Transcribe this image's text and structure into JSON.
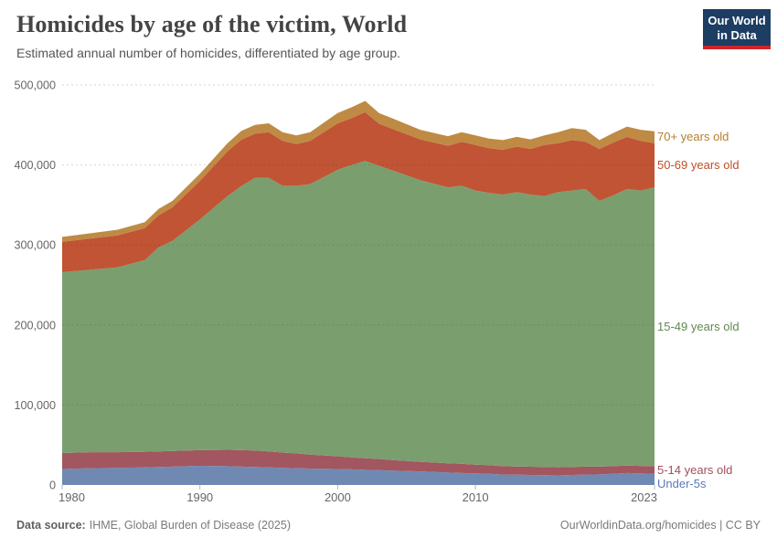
{
  "header": {
    "title": "Homicides by age of the victim, World",
    "subtitle": "Estimated annual number of homicides, differentiated by age group."
  },
  "logo": {
    "line1": "Our World",
    "line2": "in Data",
    "bg_color": "#1d3d63",
    "accent_color": "#cc2428"
  },
  "footer": {
    "source_label": "Data source:",
    "source_text": "IHME, Global Burden of Disease (2025)",
    "right_text": "OurWorldinData.org/homicides | CC BY"
  },
  "chart_data": {
    "type": "area",
    "stacked": true,
    "title": "Homicides by age of the victim, World",
    "xlabel": "",
    "ylabel": "Estimated annual number of homicides",
    "xlim": [
      1980,
      2023
    ],
    "ylim": [
      0,
      500000
    ],
    "grid": "horizontal-dashed",
    "legend_position": "right-edge-labels",
    "x": [
      1980,
      1982,
      1984,
      1986,
      1987,
      1988,
      1990,
      1992,
      1993,
      1994,
      1995,
      1996,
      1997,
      1998,
      2000,
      2001,
      2002,
      2003,
      2004,
      2006,
      2008,
      2009,
      2010,
      2011,
      2012,
      2013,
      2014,
      2015,
      2016,
      2017,
      2018,
      2019,
      2020,
      2021,
      2022,
      2023
    ],
    "series": [
      {
        "name": "Under-5s",
        "color": "#7089b3",
        "label_color": "#5b7ab8",
        "values": [
          20000,
          21000,
          21500,
          22000,
          22500,
          23000,
          24000,
          23500,
          23000,
          22500,
          22000,
          21500,
          21000,
          20500,
          20000,
          19500,
          19000,
          18500,
          18000,
          17000,
          15500,
          15000,
          14500,
          14000,
          13000,
          12800,
          12500,
          12300,
          12000,
          12500,
          13000,
          13200,
          14000,
          15000,
          14500,
          14000
        ]
      },
      {
        "name": "5-14 years old",
        "color": "#a2565f",
        "label_color": "#a34e5d",
        "values": [
          20000,
          20000,
          19500,
          19500,
          19500,
          19500,
          19500,
          20500,
          20500,
          20500,
          20000,
          19000,
          18500,
          17500,
          16000,
          15000,
          14500,
          14000,
          13000,
          12000,
          11500,
          11500,
          11000,
          10800,
          10500,
          10400,
          10300,
          10200,
          10200,
          10000,
          10000,
          9800,
          9500,
          9300,
          9400,
          9500
        ]
      },
      {
        "name": "15-49 years old",
        "color": "#7b9e6f",
        "label_color": "#61894f",
        "values": [
          226000,
          228000,
          231000,
          239500,
          255000,
          262500,
          288500,
          317000,
          330000,
          341000,
          342000,
          333500,
          334500,
          338000,
          358000,
          365500,
          371500,
          366500,
          362000,
          352000,
          345000,
          347500,
          342500,
          340200,
          339500,
          342800,
          340200,
          338500,
          343800,
          345500,
          347000,
          332000,
          338500,
          345700,
          344100,
          348500
        ]
      },
      {
        "name": "50-69 years old",
        "color": "#c05434",
        "label_color": "#c24e27",
        "values": [
          38000,
          39000,
          40000,
          40000,
          40000,
          42000,
          48000,
          56000,
          58000,
          55000,
          57000,
          56000,
          52000,
          54000,
          58000,
          58500,
          61000,
          52500,
          52000,
          51000,
          52000,
          55000,
          57000,
          56000,
          56000,
          57000,
          57000,
          64000,
          61000,
          63000,
          59000,
          65000,
          66000,
          65000,
          62000,
          55000
        ]
      },
      {
        "name": "70+ years old",
        "color": "#bf8a44",
        "label_color": "#b57f2e",
        "values": [
          6000,
          6500,
          7000,
          7500,
          8000,
          8000,
          9000,
          10000,
          11000,
          11000,
          11000,
          11000,
          11000,
          11000,
          13000,
          13500,
          14000,
          13500,
          13000,
          12000,
          12000,
          12000,
          12000,
          12000,
          12000,
          12000,
          12000,
          12000,
          14000,
          15000,
          15000,
          11000,
          12000,
          13000,
          14000,
          15000
        ]
      }
    ],
    "yticks": [
      0,
      100000,
      200000,
      300000,
      400000,
      500000
    ],
    "ytick_labels": [
      "0",
      "100,000",
      "200,000",
      "300,000",
      "400,000",
      "500,000"
    ],
    "xticks": [
      {
        "year": 1980,
        "label": "1980"
      },
      {
        "year": 1990,
        "label": "1990"
      },
      {
        "year": 2000,
        "label": "2000"
      },
      {
        "year": 2010,
        "label": "2010"
      },
      {
        "year": 2023,
        "label": "2023"
      }
    ]
  }
}
